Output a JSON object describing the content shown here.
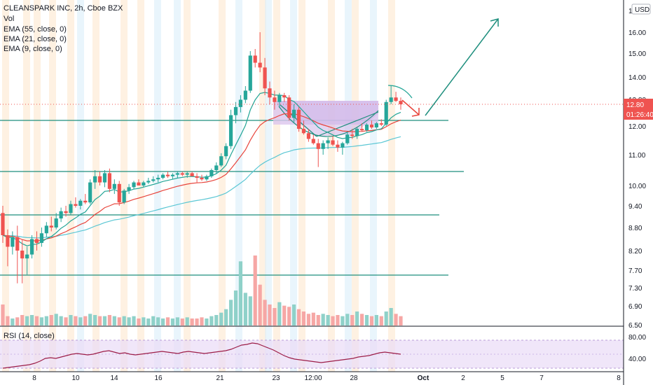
{
  "legend": {
    "title": "CLEANSPARK INC, 2h, Cboe BZX",
    "vol": "Vol",
    "ema55": "EMA (55, close, 0)",
    "ema21": "EMA (21, close, 0)",
    "ema9": "EMA (9, close, 0)"
  },
  "rsi": {
    "label": "RSI (14, close)",
    "ticks": [
      "80.00",
      "40.00"
    ]
  },
  "price_axis": {
    "currency": "USD",
    "ticks": [
      "17.00",
      "16.00",
      "15.00",
      "14.00",
      "12.80",
      "12.00",
      "11.00",
      "10.00",
      "9.40",
      "8.80",
      "8.20",
      "7.70",
      "7.30",
      "6.90",
      "6.50"
    ],
    "last_price": "12.80",
    "countdown": "01:26:40"
  },
  "time_axis": {
    "ticks": [
      "8",
      "10",
      "14",
      "16",
      "21",
      "23",
      "12:00",
      "28",
      "Oct",
      "2",
      "5",
      "7",
      "8"
    ]
  },
  "colors": {
    "up": "#26a69a",
    "down": "#ef5350",
    "ema55": "#5bc7d4",
    "ema21": "#e8453c",
    "ema9": "#22a596",
    "drawing": "#1f8f7e",
    "arrow_down": "#e8453c",
    "price_tag": "#ef5350",
    "rsi_line": "#9c1d48",
    "rsi_band": "#eadcf7"
  },
  "chart_data": {
    "type": "candlestick",
    "title": "CLEANSPARK INC, 2h, Cboe BZX",
    "y_unit": "USD",
    "last_price": 12.8,
    "candles": [
      [
        9.2,
        9.4,
        8.4,
        8.6
      ],
      [
        8.6,
        8.75,
        7.8,
        8.3
      ],
      [
        8.3,
        8.7,
        8.1,
        8.55
      ],
      [
        8.55,
        8.85,
        7.4,
        8.2
      ],
      [
        8.2,
        8.5,
        7.4,
        8.0
      ],
      [
        8.0,
        8.3,
        7.6,
        8.1
      ],
      [
        8.1,
        8.6,
        8.0,
        8.5
      ],
      [
        8.5,
        8.7,
        8.2,
        8.4
      ],
      [
        8.4,
        8.8,
        8.3,
        8.65
      ],
      [
        8.65,
        8.95,
        8.55,
        8.85
      ],
      [
        8.85,
        9.1,
        8.7,
        8.8
      ],
      [
        8.8,
        9.2,
        8.75,
        9.05
      ],
      [
        9.05,
        9.35,
        8.95,
        9.25
      ],
      [
        9.25,
        9.4,
        9.1,
        9.2
      ],
      [
        9.2,
        9.55,
        9.15,
        9.45
      ],
      [
        9.45,
        9.65,
        9.35,
        9.4
      ],
      [
        9.4,
        9.6,
        9.3,
        9.55
      ],
      [
        9.55,
        9.75,
        9.45,
        9.5
      ],
      [
        9.5,
        10.2,
        9.45,
        10.1
      ],
      [
        10.1,
        10.5,
        9.9,
        10.3
      ],
      [
        10.3,
        10.45,
        10.0,
        10.1
      ],
      [
        10.1,
        10.5,
        9.95,
        10.4
      ],
      [
        10.4,
        10.55,
        9.8,
        9.9
      ],
      [
        9.9,
        10.2,
        9.75,
        10.05
      ],
      [
        10.05,
        10.15,
        9.4,
        9.5
      ],
      [
        9.5,
        9.9,
        9.45,
        9.85
      ],
      [
        9.85,
        10.05,
        9.75,
        9.95
      ],
      [
        9.95,
        10.15,
        9.9,
        10.1
      ],
      [
        10.1,
        10.2,
        10.0,
        10.0
      ],
      [
        10.0,
        10.15,
        9.95,
        10.1
      ],
      [
        10.1,
        10.25,
        10.05,
        10.15
      ],
      [
        10.15,
        10.3,
        10.1,
        10.2
      ],
      [
        10.2,
        10.35,
        10.1,
        10.25
      ],
      [
        10.25,
        10.4,
        10.2,
        10.35
      ],
      [
        10.35,
        10.45,
        10.25,
        10.3
      ],
      [
        10.3,
        10.4,
        10.2,
        10.35
      ],
      [
        10.35,
        10.45,
        10.25,
        10.4
      ],
      [
        10.4,
        10.45,
        10.3,
        10.35
      ],
      [
        10.35,
        10.45,
        10.25,
        10.4
      ],
      [
        10.4,
        10.45,
        10.3,
        10.3
      ],
      [
        10.3,
        10.4,
        10.1,
        10.25
      ],
      [
        10.25,
        10.35,
        10.15,
        10.2
      ],
      [
        10.2,
        10.35,
        10.15,
        10.3
      ],
      [
        10.3,
        10.55,
        10.25,
        10.5
      ],
      [
        10.5,
        10.75,
        10.4,
        10.65
      ],
      [
        10.65,
        11.05,
        10.6,
        10.95
      ],
      [
        10.95,
        11.4,
        10.85,
        11.3
      ],
      [
        11.3,
        12.6,
        11.2,
        12.4
      ],
      [
        12.4,
        12.9,
        12.1,
        12.7
      ],
      [
        12.7,
        13.2,
        12.5,
        13.0
      ],
      [
        13.0,
        13.6,
        12.85,
        13.4
      ],
      [
        13.4,
        15.1,
        13.3,
        14.9
      ],
      [
        14.9,
        15.2,
        14.4,
        14.6
      ],
      [
        14.6,
        16.0,
        14.2,
        14.4
      ],
      [
        14.4,
        14.8,
        13.2,
        13.5
      ],
      [
        13.5,
        13.8,
        12.8,
        13.1
      ],
      [
        13.1,
        13.4,
        12.6,
        12.9
      ],
      [
        12.9,
        13.3,
        12.7,
        13.2
      ],
      [
        13.2,
        13.3,
        12.9,
        13.1
      ],
      [
        13.1,
        13.2,
        12.2,
        12.3
      ],
      [
        12.3,
        12.8,
        12.1,
        12.6
      ],
      [
        12.6,
        12.7,
        11.8,
        11.9
      ],
      [
        11.9,
        12.2,
        11.7,
        11.75
      ],
      [
        11.75,
        11.9,
        11.45,
        11.55
      ],
      [
        11.55,
        11.7,
        11.35,
        11.4
      ],
      [
        11.4,
        11.55,
        10.6,
        11.2
      ],
      [
        11.2,
        11.5,
        11.0,
        11.4
      ],
      [
        11.4,
        11.6,
        11.2,
        11.5
      ],
      [
        11.5,
        11.65,
        11.3,
        11.35
      ],
      [
        11.35,
        11.5,
        11.1,
        11.25
      ],
      [
        11.25,
        11.45,
        11.0,
        11.4
      ],
      [
        11.4,
        11.8,
        11.35,
        11.7
      ],
      [
        11.7,
        11.9,
        11.55,
        11.65
      ],
      [
        11.65,
        11.95,
        11.55,
        11.9
      ],
      [
        11.9,
        12.1,
        11.8,
        11.85
      ],
      [
        11.85,
        12.1,
        11.8,
        12.05
      ],
      [
        12.05,
        12.2,
        11.9,
        11.95
      ],
      [
        11.95,
        12.15,
        11.9,
        12.1
      ],
      [
        12.1,
        12.25,
        12.0,
        12.05
      ],
      [
        12.05,
        13.0,
        12.0,
        12.9
      ],
      [
        12.9,
        13.6,
        12.8,
        13.1
      ],
      [
        13.1,
        13.35,
        12.9,
        12.95
      ],
      [
        12.95,
        13.1,
        12.6,
        12.8
      ]
    ],
    "volume": [
      18,
      8,
      6,
      7,
      9,
      8,
      9,
      8,
      7,
      8,
      9,
      10,
      8,
      7,
      9,
      8,
      7,
      8,
      10,
      9,
      8,
      8,
      9,
      8,
      7,
      8,
      7,
      8,
      6,
      7,
      6,
      8,
      7,
      6,
      7,
      6,
      7,
      6,
      7,
      6,
      6,
      7,
      6,
      8,
      9,
      11,
      14,
      22,
      30,
      55,
      28,
      25,
      60,
      35,
      22,
      18,
      15,
      20,
      17,
      16,
      18,
      14,
      12,
      10,
      11,
      9,
      10,
      9,
      8,
      9,
      8,
      10,
      9,
      12,
      10,
      9,
      8,
      9,
      8,
      12,
      15,
      10,
      8
    ],
    "rsi": [
      40,
      41,
      42,
      43,
      44,
      45,
      47,
      50,
      54,
      55,
      54,
      56,
      58,
      60,
      61,
      60,
      59,
      60,
      62,
      64,
      65,
      63,
      61,
      62,
      60,
      59,
      60,
      61,
      62,
      63,
      64,
      63,
      62,
      61,
      63,
      64,
      63,
      62,
      61,
      62,
      63,
      64,
      65,
      67,
      70,
      73,
      74,
      76,
      75,
      72,
      69,
      66,
      62,
      58,
      55,
      53,
      52,
      51,
      50,
      49,
      48,
      49,
      50,
      51,
      52,
      53,
      54,
      56,
      57,
      58,
      60,
      62,
      63,
      62,
      61,
      60
    ]
  }
}
